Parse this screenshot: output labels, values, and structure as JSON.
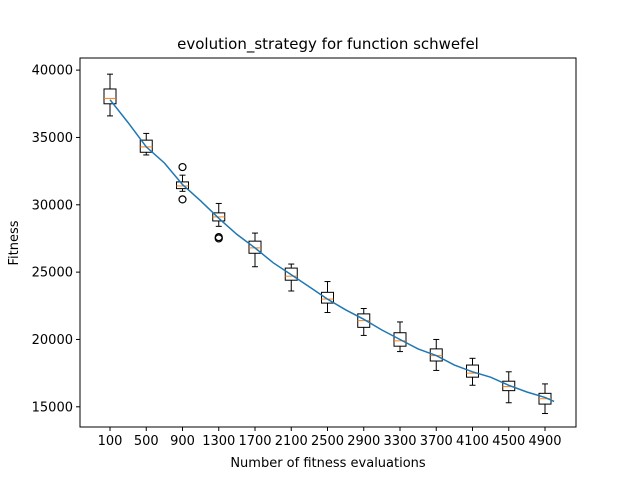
{
  "chart_data": {
    "type": "box",
    "title": "evolution_strategy for function schwefel",
    "xlabel": "Number of fitness evaluations",
    "ylabel": "Fitness",
    "categories": [
      "100",
      "500",
      "900",
      "1300",
      "1700",
      "2100",
      "2500",
      "2900",
      "3300",
      "3700",
      "4100",
      "4500",
      "4900"
    ],
    "ylim": [
      13500,
      40900
    ],
    "yticks": [
      15000,
      20000,
      25000,
      30000,
      35000,
      40000
    ],
    "ytick_labels": [
      "15000",
      "20000",
      "25000",
      "30000",
      "35000",
      "40000"
    ],
    "boxes": [
      {
        "x": 100,
        "whislo": 36600,
        "q1": 37500,
        "med": 37900,
        "q3": 38600,
        "whishi": 39700,
        "fliers": []
      },
      {
        "x": 500,
        "whislo": 33700,
        "q1": 33900,
        "med": 34300,
        "q3": 34800,
        "whishi": 35300,
        "fliers": []
      },
      {
        "x": 900,
        "whislo": 31000,
        "q1": 31200,
        "med": 31400,
        "q3": 31700,
        "whishi": 32200,
        "fliers": [
          30400,
          32800
        ]
      },
      {
        "x": 1300,
        "whislo": 28400,
        "q1": 28800,
        "med": 29100,
        "q3": 29400,
        "whishi": 30100,
        "fliers": [
          27600,
          27500
        ]
      },
      {
        "x": 1700,
        "whislo": 25400,
        "q1": 26400,
        "med": 26800,
        "q3": 27300,
        "whishi": 27900,
        "fliers": []
      },
      {
        "x": 2100,
        "whislo": 23600,
        "q1": 24400,
        "med": 24700,
        "q3": 25300,
        "whishi": 25600,
        "fliers": []
      },
      {
        "x": 2500,
        "whislo": 22000,
        "q1": 22700,
        "med": 23000,
        "q3": 23500,
        "whishi": 24300,
        "fliers": []
      },
      {
        "x": 2900,
        "whislo": 20300,
        "q1": 20900,
        "med": 21400,
        "q3": 21900,
        "whishi": 22300,
        "fliers": []
      },
      {
        "x": 3300,
        "whislo": 19100,
        "q1": 19500,
        "med": 19900,
        "q3": 20500,
        "whishi": 21300,
        "fliers": []
      },
      {
        "x": 3700,
        "whislo": 17700,
        "q1": 18400,
        "med": 18800,
        "q3": 19300,
        "whishi": 20000,
        "fliers": []
      },
      {
        "x": 4100,
        "whislo": 16600,
        "q1": 17200,
        "med": 17500,
        "q3": 18100,
        "whishi": 18600,
        "fliers": []
      },
      {
        "x": 4500,
        "whislo": 15300,
        "q1": 16200,
        "med": 16500,
        "q3": 16900,
        "whishi": 17600,
        "fliers": []
      },
      {
        "x": 4900,
        "whislo": 14500,
        "q1": 15200,
        "med": 15600,
        "q3": 16000,
        "whishi": 16700,
        "fliers": []
      }
    ],
    "series": [
      {
        "type": "line",
        "x": [
          100,
          300,
          500,
          700,
          900,
          1100,
          1300,
          1500,
          1700,
          1900,
          2100,
          2300,
          2500,
          2700,
          2900,
          3100,
          3300,
          3500,
          3700,
          3900,
          4100,
          4300,
          4500,
          4700,
          4900,
          5000
        ],
        "values": [
          37800,
          36100,
          34300,
          33100,
          31500,
          30300,
          29000,
          27800,
          26800,
          25700,
          24800,
          23900,
          23000,
          22200,
          21500,
          20700,
          20000,
          19300,
          18800,
          18100,
          17600,
          17200,
          16600,
          16100,
          15700,
          15400
        ]
      }
    ],
    "grid": false,
    "colors": {
      "box": "#000000",
      "median": "#ff7f0e",
      "line": "#1f77b4",
      "flier": "#000000"
    }
  }
}
